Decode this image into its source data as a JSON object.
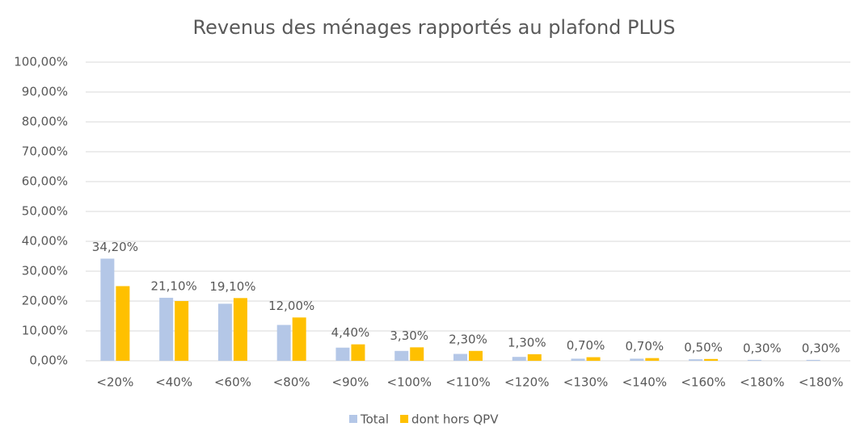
{
  "chart_data": {
    "type": "bar",
    "title": "Revenus des ménages rapportés au plafond PLUS",
    "categories": [
      "<20%",
      "<40%",
      "<60%",
      "<80%",
      "<90%",
      "<100%",
      "<110%",
      "<120%",
      "<130%",
      "<140%",
      "<160%",
      "<180%",
      "<180%"
    ],
    "series": [
      {
        "name": "Total",
        "color": "#b4c7e7",
        "values": [
          34.2,
          21.1,
          19.1,
          12.0,
          4.4,
          3.3,
          2.3,
          1.3,
          0.7,
          0.7,
          0.5,
          0.3,
          0.3
        ],
        "value_labels": [
          "34,20%",
          "21,10%",
          "19,10%",
          "12,00%",
          "4,40%",
          "3,30%",
          "2,30%",
          "1,30%",
          "0,70%",
          "0,70%",
          "0,50%",
          "0,30%",
          "0,30%"
        ]
      },
      {
        "name": "dont hors QPV",
        "color": "#ffc000",
        "values": [
          25,
          20,
          21,
          14.5,
          5.5,
          4.5,
          3.3,
          2.2,
          1.2,
          0.9,
          0.6,
          0,
          0
        ]
      }
    ],
    "ylim": [
      0,
      100
    ],
    "yticks": [
      {
        "value": 0,
        "label": "0,00%"
      },
      {
        "value": 10,
        "label": "10,00%"
      },
      {
        "value": 20,
        "label": "20,00%"
      },
      {
        "value": 30,
        "label": "30,00%"
      },
      {
        "value": 40,
        "label": "40,00%"
      },
      {
        "value": 50,
        "label": "50,00%"
      },
      {
        "value": 60,
        "label": "60,00%"
      },
      {
        "value": 70,
        "label": "70,00%"
      },
      {
        "value": 80,
        "label": "80,00%"
      },
      {
        "value": 90,
        "label": "90,00%"
      },
      {
        "value": 100,
        "label": "100,00%"
      }
    ],
    "grid": true,
    "legend": "bottom"
  }
}
